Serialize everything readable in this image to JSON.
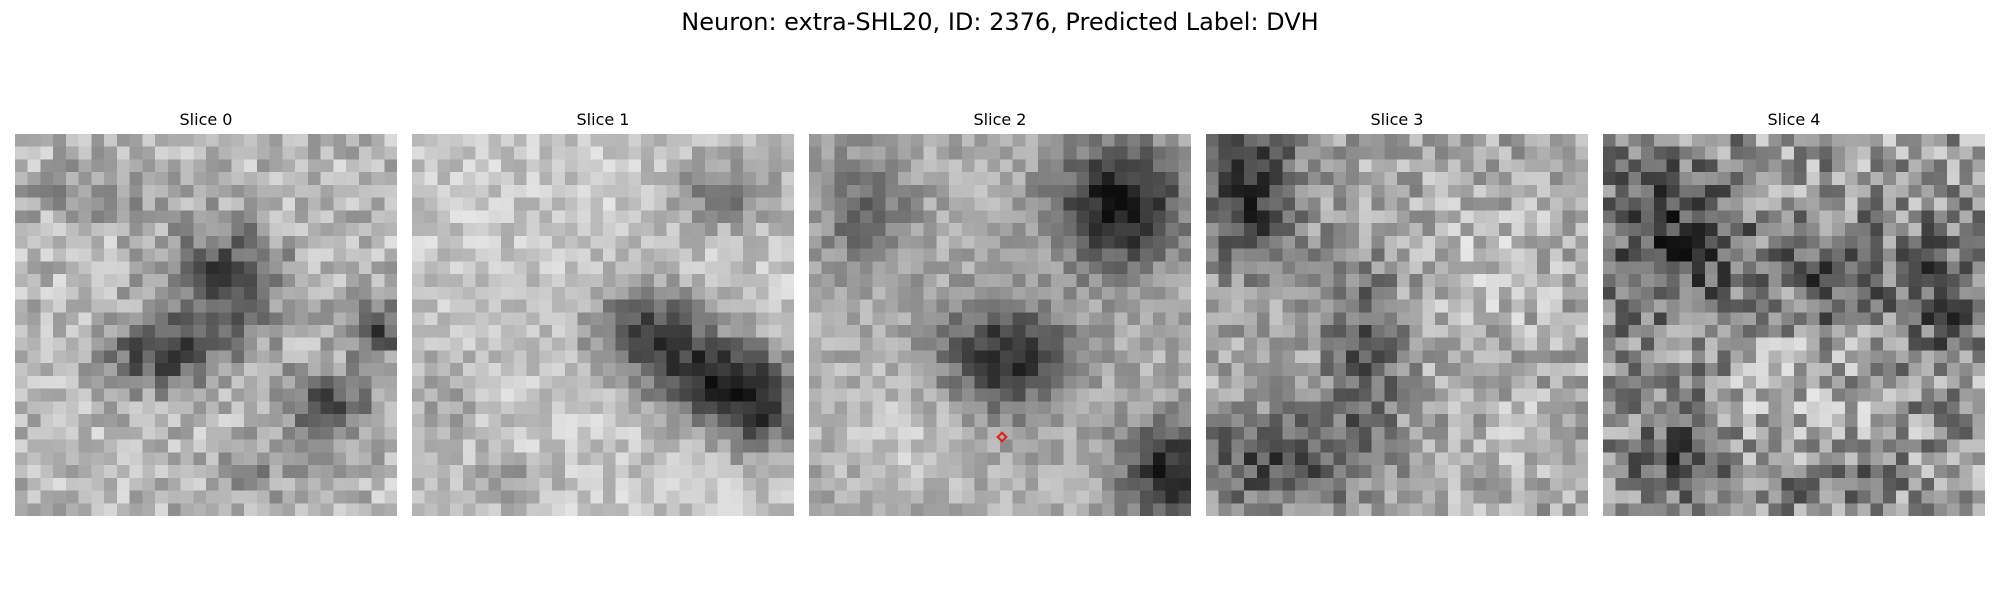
{
  "figure": {
    "title": "Neuron: extra-SHL20, ID: 2376, Predicted Label: DVH"
  },
  "panels": [
    {
      "title": "Slice 0",
      "palette": {
        "min": "#111111",
        "max": "#f2f2f2"
      }
    },
    {
      "title": "Slice 1",
      "palette": {
        "min": "#121212",
        "max": "#f4f4f4"
      }
    },
    {
      "title": "Slice 2",
      "palette": {
        "min": "#101010",
        "max": "#f2f2f2"
      },
      "marker": {
        "shape": "diamond",
        "color": "#e02020"
      }
    },
    {
      "title": "Slice 3",
      "palette": {
        "min": "#111111",
        "max": "#f4f4f4"
      }
    },
    {
      "title": "Slice 4",
      "palette": {
        "min": "#101010",
        "max": "#f2f2f2"
      }
    }
  ]
}
